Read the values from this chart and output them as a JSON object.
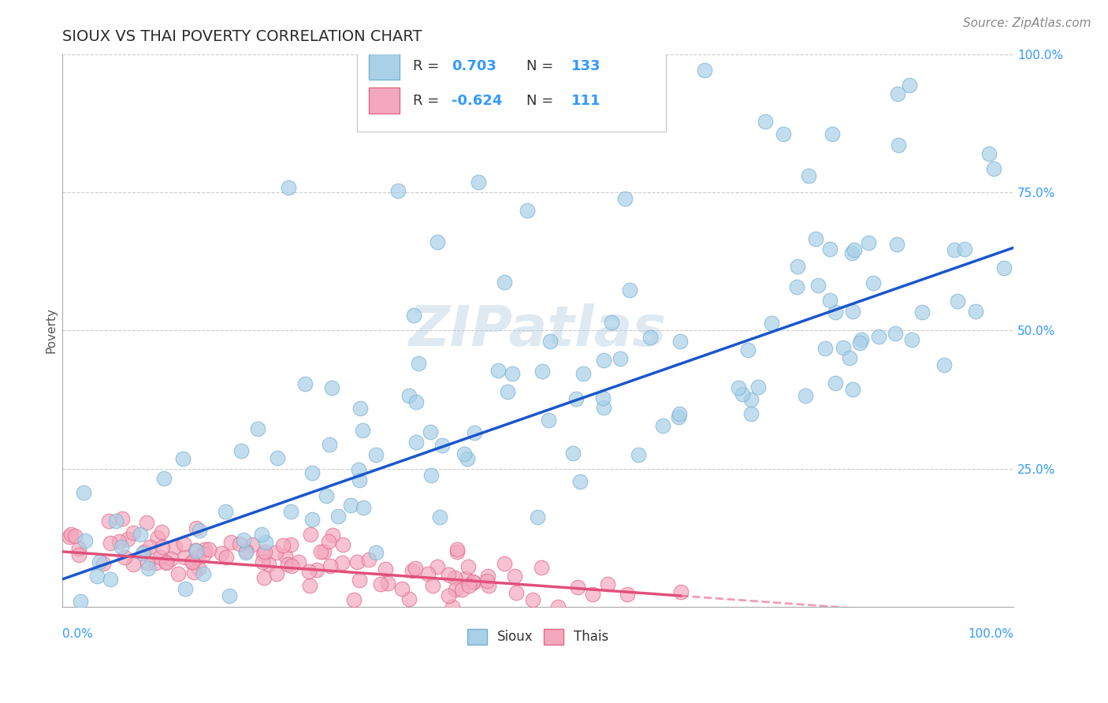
{
  "title": "SIOUX VS THAI POVERTY CORRELATION CHART",
  "source_text": "Source: ZipAtlas.com",
  "ylabel": "Poverty",
  "x_min": 0.0,
  "x_max": 1.0,
  "y_min": 0.0,
  "y_max": 1.0,
  "right_yticklabels": [
    "",
    "25.0%",
    "50.0%",
    "75.0%",
    "100.0%"
  ],
  "right_ytick_vals": [
    0.0,
    0.25,
    0.5,
    0.75,
    1.0
  ],
  "bottom_xticklabels": [
    "0.0%",
    "100.0%"
  ],
  "sioux_color": "#a8d0e8",
  "sioux_edge_color": "#7ab0d0",
  "thai_color": "#f4a8be",
  "thai_edge_color": "#e06888",
  "sioux_line_color": "#1a56cc",
  "thai_line_color": "#e0507a",
  "sioux_R": 0.703,
  "sioux_N": 133,
  "thai_R": -0.624,
  "thai_N": 111,
  "legend_label_sioux": "Sioux",
  "legend_label_thai": "Thais",
  "watermark": "ZIPatlas",
  "background_color": "#ffffff",
  "grid_color": "#cccccc",
  "title_color": "#2a2a2a",
  "axis_label_color": "#555555",
  "right_tick_color": "#3399ff",
  "bottom_tick_color": "#3399ff",
  "legend_r_color": "#333333",
  "title_fontsize": 14,
  "source_fontsize": 11,
  "axis_fontsize": 11,
  "legend_fontsize": 13,
  "watermark_fontsize": 52
}
